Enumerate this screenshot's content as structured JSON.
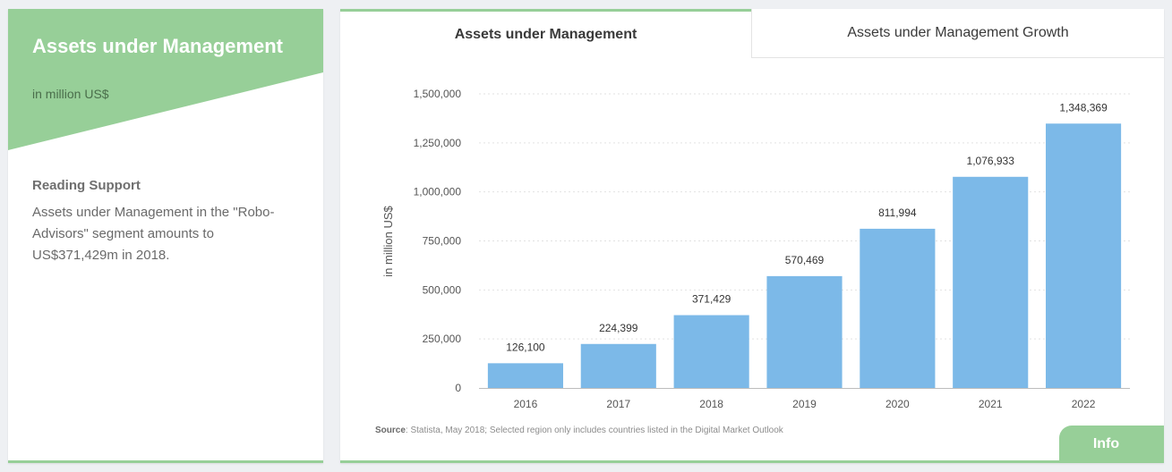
{
  "sidebar": {
    "title": "Assets under Management",
    "subtitle": "in million US$",
    "reading_support_title": "Reading Support",
    "reading_support_text": "Assets under Management in the \"Robo-Advisors\" segment amounts to US$371,429m in 2018."
  },
  "tabs": [
    {
      "label": "Assets under Management",
      "active": true
    },
    {
      "label": "Assets under Management Growth",
      "active": false
    }
  ],
  "source": {
    "label": "Source",
    "text": ": Statista, May 2018; Selected region only includes countries listed in the Digital Market Outlook"
  },
  "info_button": {
    "label": "Info"
  },
  "colors": {
    "accent": "#97cf98",
    "bar": "#7cb9e8"
  },
  "chart_data": {
    "type": "bar",
    "categories": [
      "2016",
      "2017",
      "2018",
      "2019",
      "2020",
      "2021",
      "2022"
    ],
    "values": [
      126100,
      224399,
      371429,
      570469,
      811994,
      1076933,
      1348369
    ],
    "value_labels": [
      "126,100",
      "224,399",
      "371,429",
      "570,469",
      "811,994",
      "1,076,933",
      "1,348,369"
    ],
    "ylabel": "in million US$",
    "ylim": [
      0,
      1500000
    ],
    "yticks": [
      0,
      250000,
      500000,
      750000,
      1000000,
      1250000,
      1500000
    ],
    "ytick_labels": [
      "0",
      "250,000",
      "500,000",
      "750,000",
      "1,000,000",
      "1,250,000",
      "1,500,000"
    ],
    "grid": true,
    "legend": "none"
  }
}
